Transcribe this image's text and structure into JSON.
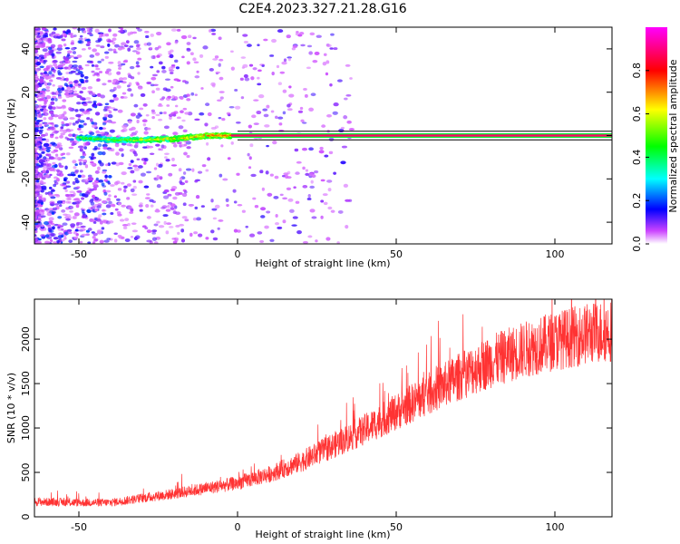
{
  "figure": {
    "title": "C2E4.2023.327.21.28.G16"
  },
  "chart_data": [
    {
      "type": "heatmap",
      "xlabel": "Height of straight line (km)",
      "ylabel": "Frequency (Hz)",
      "xlim": [
        -64,
        118
      ],
      "ylim": [
        -50,
        50
      ],
      "xticks": [
        -50,
        0,
        50,
        100
      ],
      "yticks": [
        -40,
        -20,
        0,
        20,
        40
      ],
      "grid": false,
      "colorbar": {
        "label": "Normalized spectral amplitude",
        "range": [
          0,
          1
        ],
        "ticks": [
          "0.0",
          "0.2",
          "0.4",
          "0.6",
          "0.8"
        ],
        "colors": [
          "#ffffff",
          "#cc44ff",
          "#0000ff",
          "#00ffff",
          "#00ff00",
          "#ffff00",
          "#ff0000",
          "#ff00ff"
        ]
      },
      "ridge": {
        "description_points": [
          [
            -50,
            -1
          ],
          [
            -40,
            -2
          ],
          [
            -30,
            -2
          ],
          [
            -20,
            -1.5
          ],
          [
            -10,
            0
          ],
          [
            0,
            0
          ],
          [
            118,
            0
          ]
        ],
        "bracket_hz": 2
      }
    },
    {
      "type": "line",
      "xlabel": "Height of straight line (km)",
      "ylabel": "SNR (10 * v/v)",
      "xlim": [
        -64,
        118
      ],
      "ylim": [
        0,
        2450
      ],
      "xticks": [
        -50,
        0,
        50,
        100
      ],
      "yticks": [
        0,
        500,
        1000,
        1500,
        2000
      ],
      "color": "#ff3333",
      "series": [
        {
          "trend_x": [
            -64,
            -50,
            -40,
            -30,
            -20,
            -10,
            0,
            10,
            20,
            30,
            40,
            50,
            60,
            70,
            80,
            90,
            100,
            110,
            118
          ],
          "trend_y": [
            170,
            160,
            160,
            210,
            260,
            320,
            380,
            480,
            620,
            800,
            980,
            1180,
            1380,
            1580,
            1750,
            1880,
            1980,
            2060,
            2100
          ]
        }
      ]
    }
  ]
}
